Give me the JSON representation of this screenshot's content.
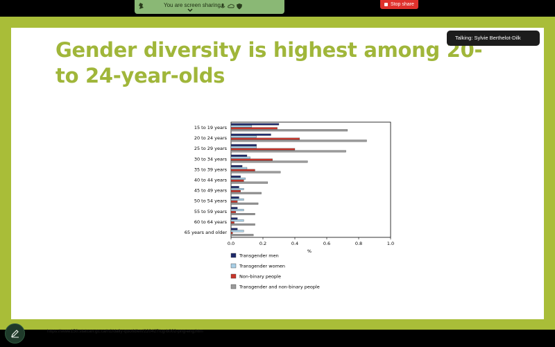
{
  "share_bar": {
    "status_text": "You are screen sharing",
    "stop_label": "Stop share"
  },
  "talking": {
    "text": "Talking: Sylvie Berthelot-Dilk"
  },
  "slide": {
    "title": "Gender diversity is highest among 20- to 24-year-olds",
    "source_url": "https://www150.statcan.gc.ca/n1/daily-quotidien/220427/cg-b002-png-eng.htm"
  },
  "colors": {
    "frame": "#a9bd38",
    "title": "#a0b63a",
    "share_green": "#8ab875",
    "stop_red": "#e0312c"
  },
  "chart_data": {
    "type": "bar",
    "orientation": "horizontal",
    "categories": [
      "15 to 19 years",
      "20 to 24 years",
      "25 to 29 years",
      "30 to 34 years",
      "35 to 39 years",
      "40 to 44 years",
      "45 to 49 years",
      "50 to 54 years",
      "55 to 59 years",
      "60 to 64 years",
      "65 years and older"
    ],
    "series": [
      {
        "name": "Transgender men",
        "color": "#1f2a6b",
        "values": [
          0.3,
          0.25,
          0.16,
          0.1,
          0.07,
          0.06,
          0.05,
          0.05,
          0.04,
          0.04,
          0.04
        ]
      },
      {
        "name": "Transgender women",
        "color": "#a9cfe6",
        "values": [
          0.13,
          0.16,
          0.16,
          0.12,
          0.1,
          0.09,
          0.08,
          0.08,
          0.08,
          0.08,
          0.08
        ]
      },
      {
        "name": "Non-binary people",
        "color": "#c8352b",
        "values": [
          0.29,
          0.43,
          0.4,
          0.26,
          0.15,
          0.08,
          0.06,
          0.04,
          0.03,
          0.02,
          0.01
        ]
      },
      {
        "name": "Transgender and non-binary people",
        "color": "#9a9a9a",
        "values": [
          0.73,
          0.85,
          0.72,
          0.48,
          0.31,
          0.23,
          0.19,
          0.17,
          0.15,
          0.15,
          0.14
        ]
      }
    ],
    "xlabel": "%",
    "xlim": [
      0,
      1.0
    ],
    "xticks": [
      "0.0",
      "0.2",
      "0.4",
      "0.6",
      "0.8",
      "1.0"
    ],
    "grid": false,
    "legend_position": "bottom"
  }
}
